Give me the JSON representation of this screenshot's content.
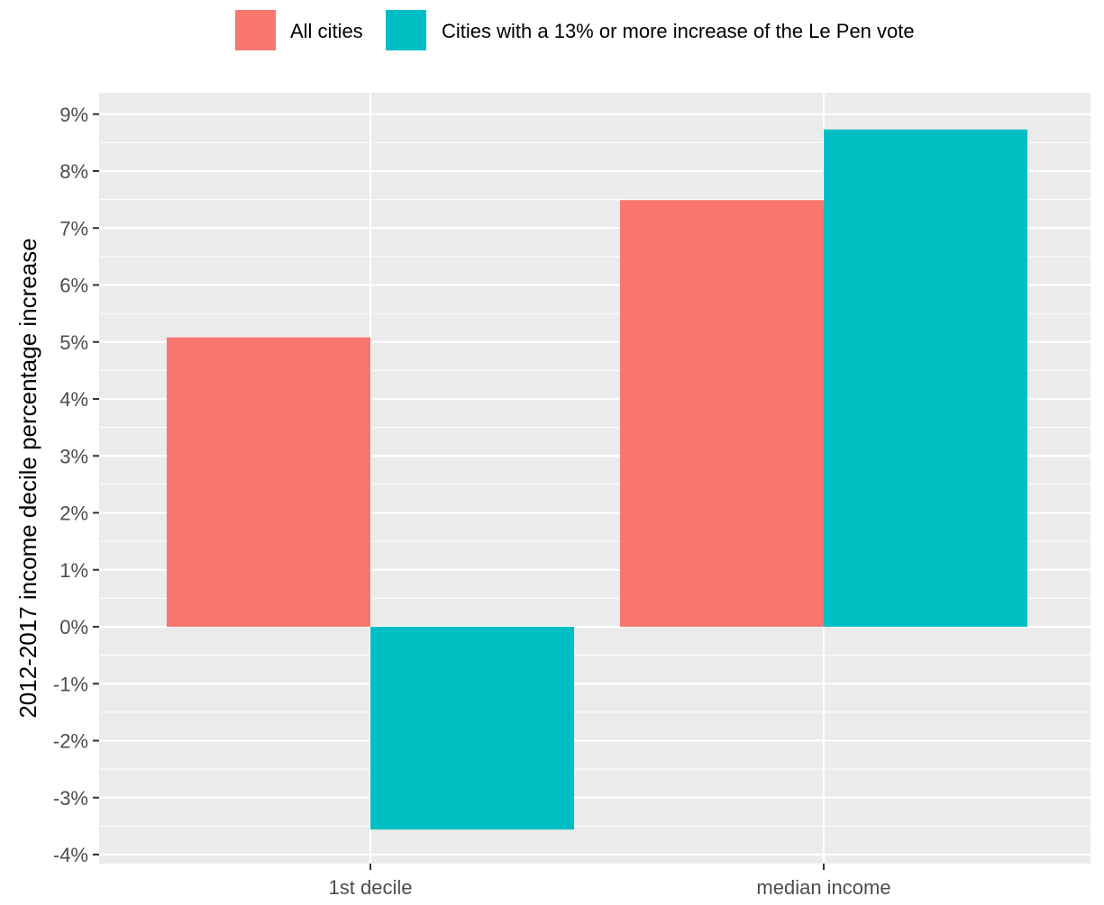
{
  "chart_data": {
    "type": "bar",
    "categories": [
      "1st decile",
      "median income"
    ],
    "series": [
      {
        "name": "All cities",
        "color": "#F8766D",
        "values": [
          5.08,
          7.49
        ]
      },
      {
        "name": "Cities with a 13% or more increase of the Le Pen vote",
        "color": "#00BFC4",
        "values": [
          -3.56,
          8.73
        ]
      }
    ],
    "ylabel": "2012-2017 income decile percentage increase",
    "xlabel": "",
    "ylim": [
      -4.2,
      9.3
    ],
    "yticks": [
      -4,
      -3,
      -2,
      -1,
      0,
      1,
      2,
      3,
      4,
      5,
      6,
      7,
      8,
      9
    ],
    "ytick_labels": [
      "-4%",
      "-3%",
      "-2%",
      "-1%",
      "0%",
      "1%",
      "2%",
      "3%",
      "4%",
      "5%",
      "6%",
      "7%",
      "8%",
      "9%"
    ],
    "legend_position": "top",
    "grid": true,
    "panel_background": "#EBEBEB"
  }
}
